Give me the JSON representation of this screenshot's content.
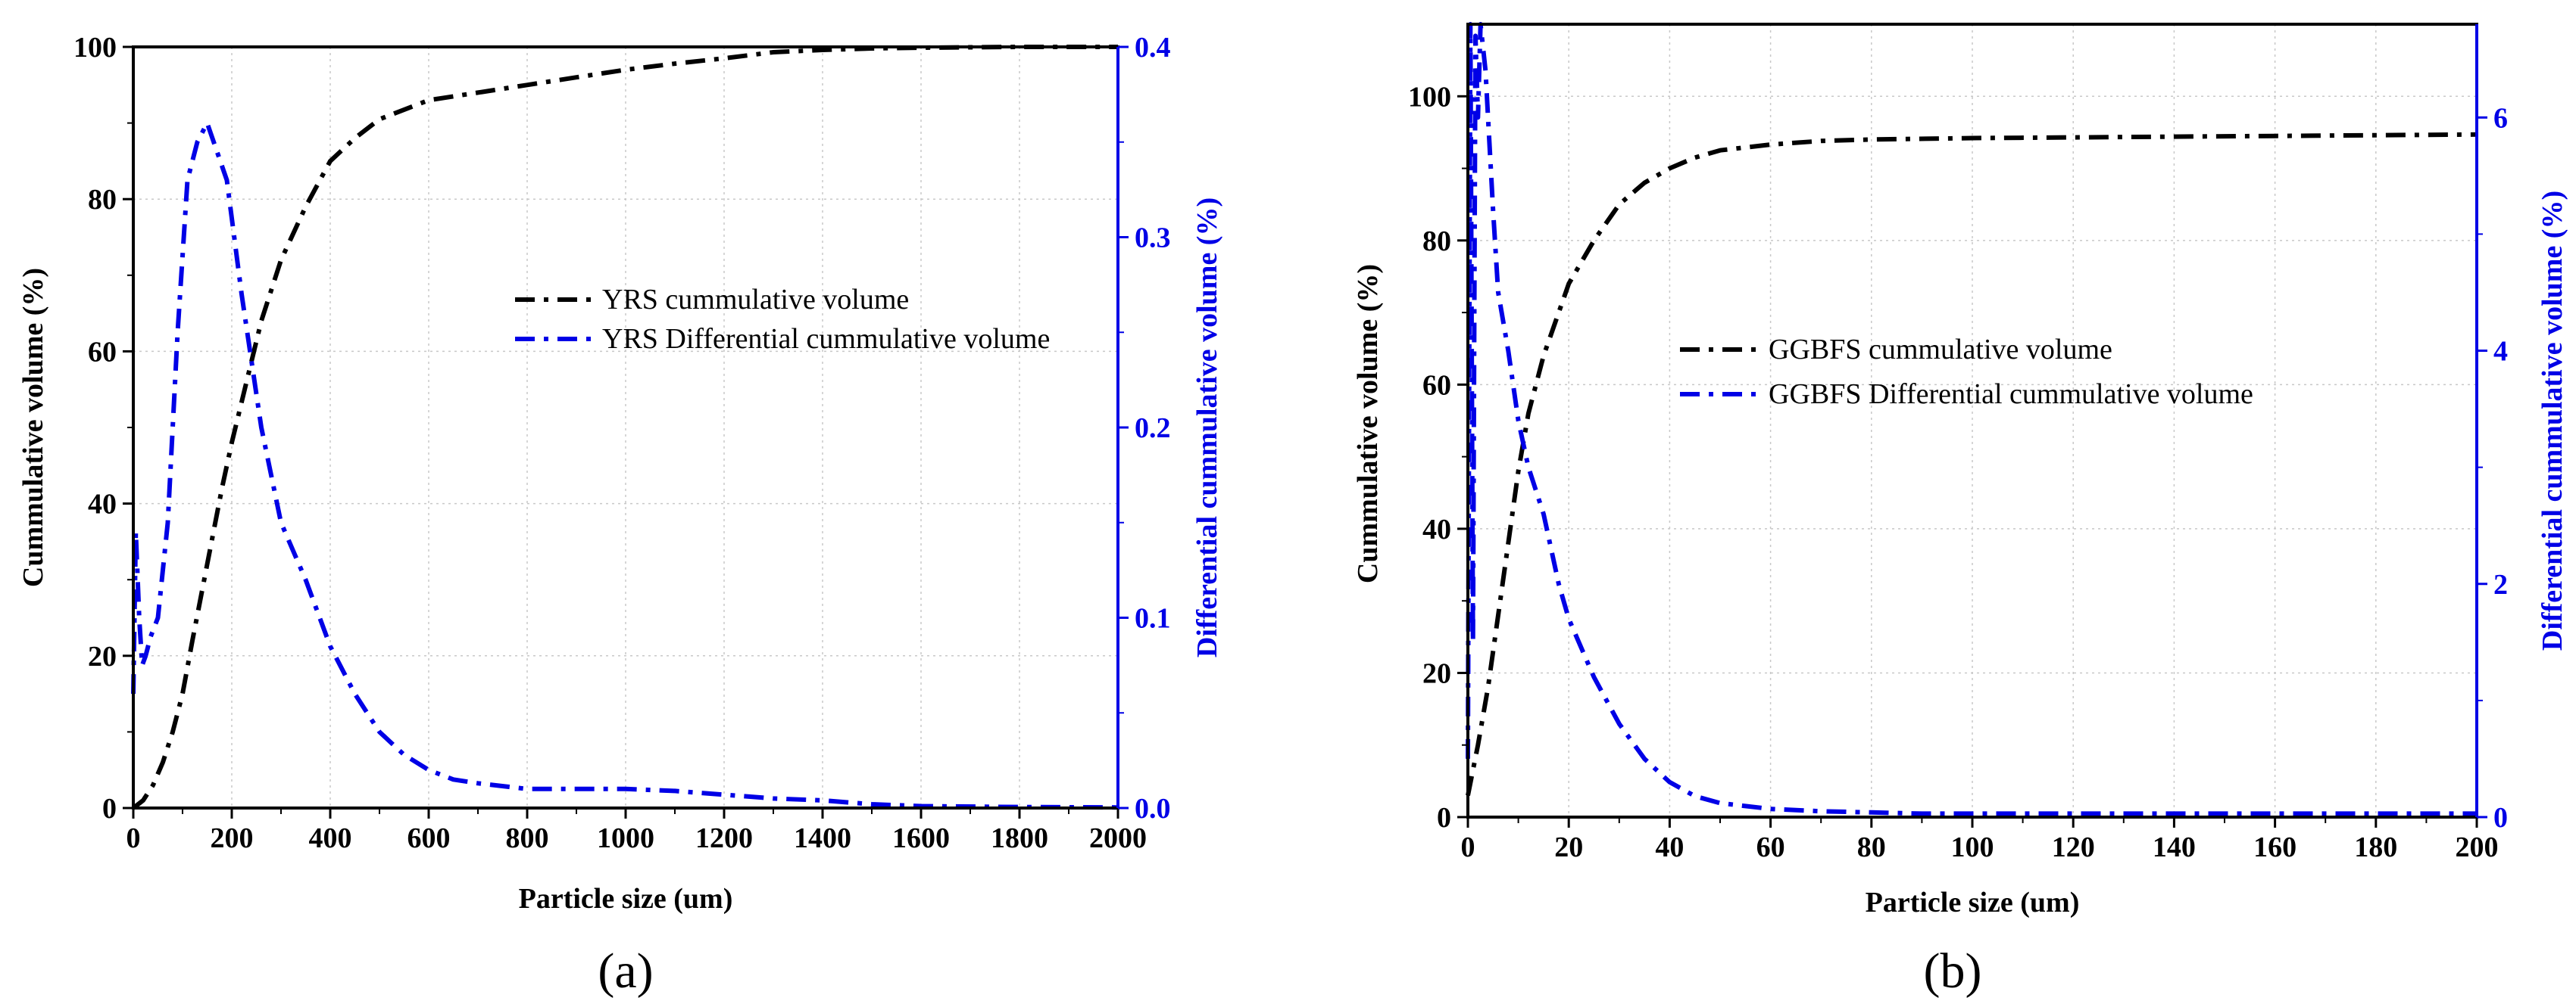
{
  "chart_data": [
    {
      "id": "a",
      "type": "line",
      "panel_label": "(a)",
      "xlabel": "Particle size (um)",
      "ylabel": "Cummulative volume (%)",
      "y2label": "Differential cummulative volume (%)",
      "xlim": [
        0,
        2000
      ],
      "ylim": [
        0,
        100
      ],
      "y2lim": [
        0,
        0.4
      ],
      "xticks": [
        0,
        200,
        400,
        600,
        800,
        1000,
        1200,
        1400,
        1600,
        1800,
        2000
      ],
      "yticks": [
        0,
        20,
        40,
        60,
        80,
        100
      ],
      "y2ticks": [
        0.0,
        0.1,
        0.2,
        0.3,
        0.4
      ],
      "y2tick_labels": [
        "0.0",
        "0.1",
        "0.2",
        "0.3",
        "0.4"
      ],
      "grid": true,
      "legend_position": "center-right",
      "colors": {
        "primary": "#000000",
        "secondary": "#0000e6"
      },
      "series": [
        {
          "name": "YRS cummulative volume",
          "axis": "left",
          "color": "#000000",
          "x": [
            0,
            20,
            40,
            60,
            80,
            100,
            120,
            150,
            180,
            200,
            230,
            260,
            300,
            350,
            400,
            450,
            500,
            600,
            700,
            800,
            900,
            1000,
            1100,
            1200,
            1300,
            1400,
            1500,
            1600,
            1800,
            2000
          ],
          "y": [
            0,
            1,
            3,
            6,
            10,
            15,
            22,
            32,
            42,
            48,
            56,
            64,
            72,
            79,
            85,
            88,
            90.5,
            93,
            94,
            95,
            96,
            97,
            97.8,
            98.5,
            99.3,
            99.6,
            99.8,
            99.9,
            100,
            100
          ]
        },
        {
          "name": "YRS Differential cummulative volume",
          "axis": "right",
          "color": "#0000e6",
          "x": [
            0,
            5,
            12,
            18,
            25,
            35,
            50,
            70,
            90,
            110,
            130,
            150,
            170,
            190,
            220,
            260,
            300,
            350,
            400,
            450,
            500,
            550,
            600,
            650,
            700,
            800,
            900,
            1000,
            1100,
            1200,
            1300,
            1400,
            1500,
            1600,
            1800,
            2000
          ],
          "y": [
            0.06,
            0.145,
            0.1,
            0.075,
            0.08,
            0.09,
            0.1,
            0.15,
            0.25,
            0.33,
            0.35,
            0.36,
            0.345,
            0.33,
            0.27,
            0.2,
            0.15,
            0.12,
            0.085,
            0.06,
            0.04,
            0.028,
            0.02,
            0.015,
            0.013,
            0.01,
            0.01,
            0.01,
            0.009,
            0.007,
            0.005,
            0.004,
            0.002,
            0.001,
            0.0005,
            0.0003
          ]
        }
      ]
    },
    {
      "id": "b",
      "type": "line",
      "panel_label": "(b)",
      "xlabel": "Particle size (um)",
      "ylabel": "Cummulative volume (%)",
      "y2label": "Differential cummulative volume (%)",
      "xlim": [
        0,
        200
      ],
      "ylim": [
        0,
        110
      ],
      "y2lim": [
        0,
        6.8
      ],
      "xticks": [
        0,
        20,
        40,
        60,
        80,
        100,
        120,
        140,
        160,
        180,
        200
      ],
      "yticks": [
        0,
        20,
        40,
        60,
        80,
        100
      ],
      "y2ticks": [
        0,
        2,
        4,
        6
      ],
      "y2tick_labels": [
        "0",
        "2",
        "4",
        "6"
      ],
      "grid": true,
      "legend_position": "center-right",
      "colors": {
        "primary": "#000000",
        "secondary": "#0000e6"
      },
      "series": [
        {
          "name": "GGBFS cummulative volume",
          "axis": "left",
          "color": "#000000",
          "x": [
            0,
            2,
            4,
            6,
            8,
            10,
            12,
            15,
            18,
            20,
            25,
            30,
            35,
            40,
            45,
            50,
            60,
            70,
            80,
            100,
            120,
            140,
            160,
            180,
            200
          ],
          "y": [
            3,
            10,
            18,
            28,
            38,
            48,
            56,
            64,
            70,
            74,
            80,
            85,
            88,
            90,
            91.5,
            92.5,
            93.3,
            93.8,
            94,
            94.2,
            94.3,
            94.4,
            94.5,
            94.6,
            94.7
          ]
        },
        {
          "name": "GGBFS Differential cummulative volume",
          "axis": "right",
          "color": "#0000e6",
          "x": [
            0,
            0.5,
            1,
            1.5,
            2,
            2.5,
            3,
            3.5,
            4,
            5,
            6,
            8,
            10,
            12,
            15,
            18,
            20,
            25,
            30,
            35,
            40,
            45,
            50,
            60,
            70,
            80,
            90,
            100,
            120,
            140,
            160,
            180,
            200
          ],
          "y": [
            0.5,
            6.8,
            1.5,
            6.7,
            6.0,
            6.8,
            6.6,
            6.4,
            6.0,
            5.2,
            4.5,
            4.0,
            3.4,
            3.0,
            2.6,
            2.0,
            1.7,
            1.2,
            0.8,
            0.5,
            0.3,
            0.18,
            0.12,
            0.07,
            0.05,
            0.04,
            0.03,
            0.03,
            0.03,
            0.03,
            0.03,
            0.03,
            0.03
          ]
        }
      ]
    }
  ]
}
